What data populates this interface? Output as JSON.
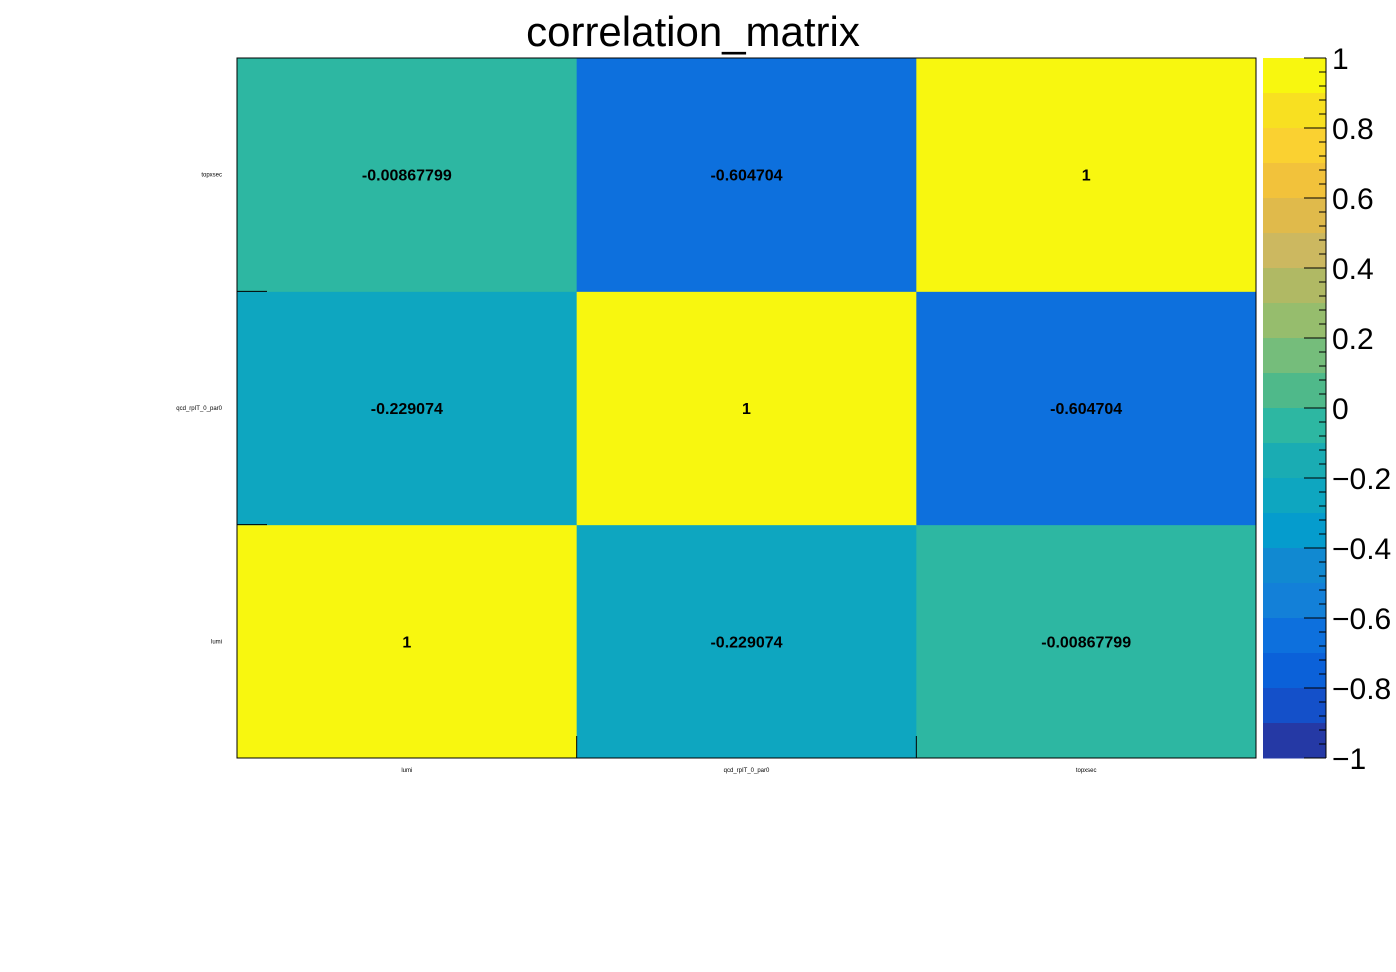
{
  "chart_data": {
    "type": "heatmap",
    "title": "correlation_matrix",
    "x_labels": [
      "lumi",
      "qcd_rpIT_0_par0",
      "topxsec"
    ],
    "y_labels": [
      "lumi",
      "qcd_rpIT_0_par0",
      "topxsec"
    ],
    "matrix": [
      [
        1,
        -0.229074,
        -0.00867799
      ],
      [
        -0.229074,
        1,
        -0.604704
      ],
      [
        -0.00867799,
        -0.604704,
        1
      ]
    ],
    "cell_text": [
      [
        "1",
        "-0.229074",
        "-0.00867799"
      ],
      [
        "-0.229074",
        "1",
        "-0.604704"
      ],
      [
        "-0.00867799",
        "-0.604704",
        "1"
      ]
    ],
    "zlim": [
      -1,
      1
    ],
    "palette_ticks": [
      "1",
      "0.8",
      "0.6",
      "0.4",
      "0.2",
      "0",
      "−0.2",
      "−0.4",
      "−0.6",
      "−0.8",
      "−1"
    ],
    "palette_colors": [
      "#f8f70f",
      "#f8e021",
      "#fad131",
      "#f2c23b",
      "#e0ba4b",
      "#ccb860",
      "#b0b964",
      "#96bd6d",
      "#75bd7b",
      "#4fb98a",
      "#2db7a2",
      "#1aacb3",
      "#0ea6c0",
      "#059ccd",
      "#1189d1",
      "#1380d8",
      "#0d70dd",
      "#0b61d9",
      "#1450c9",
      "#2539a5"
    ],
    "grid": false,
    "legend": "none"
  }
}
